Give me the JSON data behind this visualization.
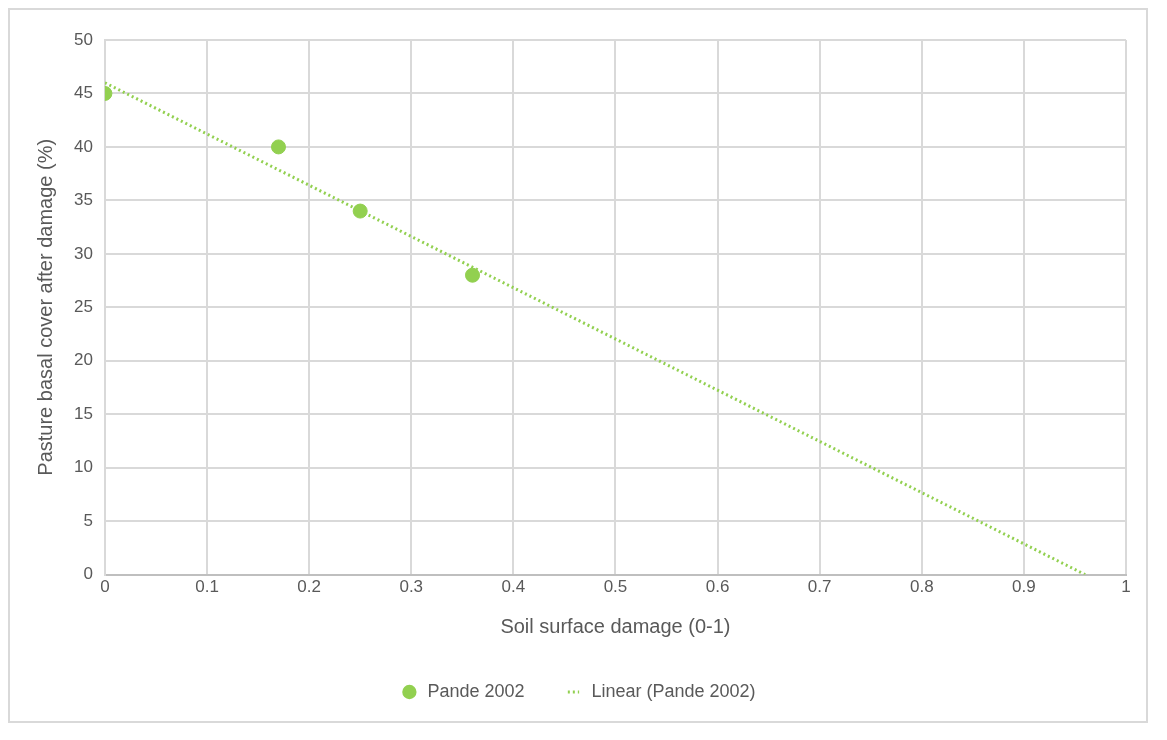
{
  "chart_data": {
    "type": "scatter",
    "xlabel": "Soil surface damage (0-1)",
    "ylabel": "Pasture basal cover after damage (%)",
    "xlim": [
      0,
      1
    ],
    "xticks": [
      0,
      0.1,
      0.2,
      0.3,
      0.4,
      0.5,
      0.6,
      0.7,
      0.8,
      0.9,
      1
    ],
    "ylim": [
      0,
      50
    ],
    "yticks": [
      0,
      5,
      10,
      15,
      20,
      25,
      30,
      35,
      40,
      45,
      50
    ],
    "grid": true,
    "legend": "bottom",
    "series": [
      {
        "name": "Pande 2002",
        "type": "scatter",
        "color": "#92d050",
        "marker": "circle",
        "x": [
          0,
          0.17,
          0.25,
          0.36
        ],
        "values": [
          45,
          40,
          34,
          28
        ]
      },
      {
        "name": "Linear (Pande 2002)",
        "type": "line",
        "color": "#92d050",
        "marker": "none",
        "line_style": "dotted",
        "x": [
          0,
          0.96
        ],
        "values": [
          46,
          0
        ]
      }
    ]
  }
}
